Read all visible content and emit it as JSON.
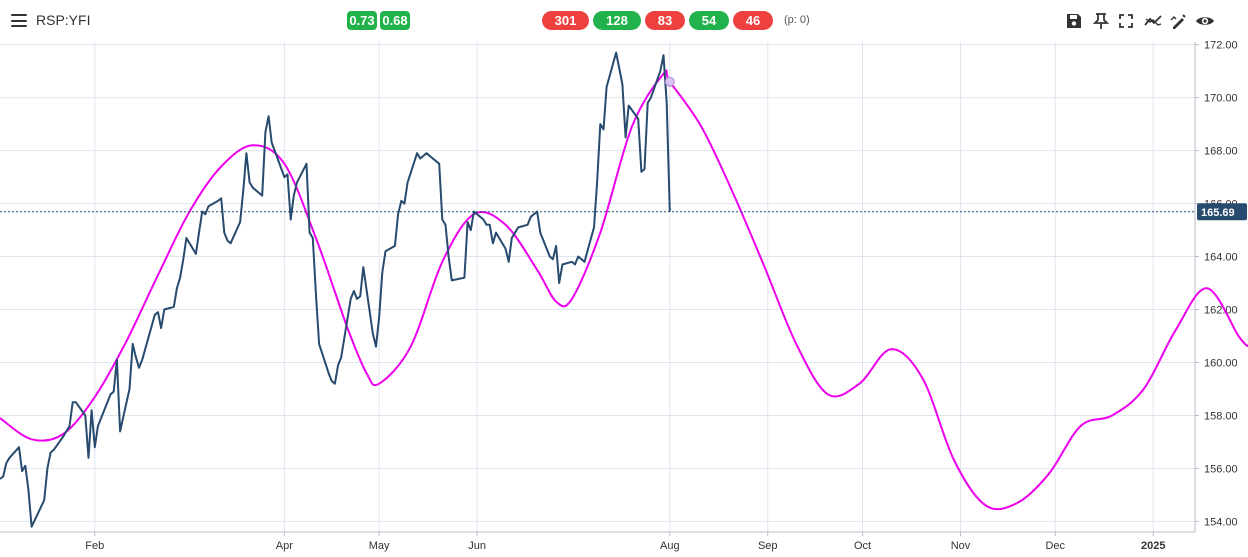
{
  "toolbar": {
    "symbol": "RSP:YFI",
    "corr_badges": [
      "0.73",
      "0.68"
    ],
    "count_badges": [
      {
        "label": "301",
        "color": "red"
      },
      {
        "label": "128",
        "color": "green"
      },
      {
        "label": "83",
        "color": "red"
      },
      {
        "label": "54",
        "color": "green"
      },
      {
        "label": "46",
        "color": "red"
      }
    ],
    "p_value": "(p: 0)",
    "icons": [
      "save-icon",
      "pin-icon",
      "fullscreen-icon",
      "trend-icon",
      "draw-icon",
      "eye-icon"
    ]
  },
  "colors": {
    "price": "#274b6e",
    "projection": "#ee00ee",
    "grid": "#dfe5ef",
    "badge_green": "#22b24c",
    "badge_red": "#ef4040",
    "last_price_bg": "#274b6e"
  },
  "chart_data": {
    "type": "line",
    "y_axis": {
      "ticks": [
        "154.00",
        "156.00",
        "158.00",
        "160.00",
        "162.00",
        "164.00",
        "166.00",
        "168.00",
        "170.00",
        "172.00"
      ],
      "range": [
        153.6,
        172.1
      ],
      "side": "right"
    },
    "x_axis": {
      "ticks": [
        "Feb",
        "Apr",
        "May",
        "Jun",
        "Aug",
        "Sep",
        "Oct",
        "Nov",
        "Dec",
        "2025"
      ],
      "tick_dates": [
        "2024-02-01",
        "2024-04-01",
        "2024-05-01",
        "2024-06-01",
        "2024-08-01",
        "2024-09-01",
        "2024-10-01",
        "2024-11-01",
        "2024-12-01",
        "2025-01-01"
      ],
      "range": [
        "2024-01-02",
        "2025-01-31"
      ]
    },
    "last_price": "165.69",
    "grid": true,
    "series": [
      {
        "name": "",
        "role": "price",
        "points": [
          [
            "2024-01-02",
            155.6
          ],
          [
            "2024-01-03",
            155.7
          ],
          [
            "2024-01-04",
            156.2
          ],
          [
            "2024-01-05",
            156.4
          ],
          [
            "2024-01-08",
            156.8
          ],
          [
            "2024-01-09",
            155.9
          ],
          [
            "2024-01-10",
            156.1
          ],
          [
            "2024-01-11",
            155.2
          ],
          [
            "2024-01-12",
            153.8
          ],
          [
            "2024-01-16",
            154.8
          ],
          [
            "2024-01-17",
            156.0
          ],
          [
            "2024-01-18",
            156.6
          ],
          [
            "2024-01-19",
            156.7
          ],
          [
            "2024-01-22",
            157.2
          ],
          [
            "2024-01-23",
            157.4
          ],
          [
            "2024-01-24",
            157.6
          ],
          [
            "2024-01-25",
            158.5
          ],
          [
            "2024-01-26",
            158.5
          ],
          [
            "2024-01-29",
            158.0
          ],
          [
            "2024-01-30",
            156.4
          ],
          [
            "2024-01-31",
            158.2
          ],
          [
            "2024-02-01",
            156.8
          ],
          [
            "2024-02-02",
            157.6
          ],
          [
            "2024-02-05",
            158.5
          ],
          [
            "2024-02-06",
            158.8
          ],
          [
            "2024-02-07",
            158.9
          ],
          [
            "2024-02-08",
            160.1
          ],
          [
            "2024-02-09",
            157.4
          ],
          [
            "2024-02-12",
            159.0
          ],
          [
            "2024-02-13",
            160.7
          ],
          [
            "2024-02-14",
            160.2
          ],
          [
            "2024-02-15",
            159.8
          ],
          [
            "2024-02-16",
            160.1
          ],
          [
            "2024-02-20",
            161.8
          ],
          [
            "2024-02-21",
            161.9
          ],
          [
            "2024-02-22",
            161.3
          ],
          [
            "2024-02-23",
            162.0
          ],
          [
            "2024-02-26",
            162.1
          ],
          [
            "2024-02-27",
            162.8
          ],
          [
            "2024-02-28",
            163.2
          ],
          [
            "2024-02-29",
            163.9
          ],
          [
            "2024-03-01",
            164.7
          ],
          [
            "2024-03-04",
            164.1
          ],
          [
            "2024-03-05",
            164.9
          ],
          [
            "2024-03-06",
            165.7
          ],
          [
            "2024-03-07",
            165.6
          ],
          [
            "2024-03-08",
            165.9
          ],
          [
            "2024-03-11",
            166.1
          ],
          [
            "2024-03-12",
            166.2
          ],
          [
            "2024-03-13",
            164.9
          ],
          [
            "2024-03-14",
            164.6
          ],
          [
            "2024-03-15",
            164.5
          ],
          [
            "2024-03-18",
            165.3
          ],
          [
            "2024-03-19",
            166.5
          ],
          [
            "2024-03-20",
            167.9
          ],
          [
            "2024-03-21",
            166.8
          ],
          [
            "2024-03-22",
            166.6
          ],
          [
            "2024-03-25",
            166.3
          ],
          [
            "2024-03-26",
            168.7
          ],
          [
            "2024-03-27",
            169.3
          ],
          [
            "2024-03-28",
            168.3
          ],
          [
            "2024-04-01",
            167.0
          ],
          [
            "2024-04-02",
            167.1
          ],
          [
            "2024-04-03",
            165.4
          ],
          [
            "2024-04-04",
            166.3
          ],
          [
            "2024-04-05",
            166.8
          ],
          [
            "2024-04-08",
            167.5
          ],
          [
            "2024-04-09",
            164.9
          ],
          [
            "2024-04-10",
            164.7
          ],
          [
            "2024-04-11",
            162.6
          ],
          [
            "2024-04-12",
            160.7
          ],
          [
            "2024-04-15",
            159.6
          ],
          [
            "2024-04-16",
            159.3
          ],
          [
            "2024-04-17",
            159.2
          ],
          [
            "2024-04-18",
            159.9
          ],
          [
            "2024-04-19",
            160.2
          ],
          [
            "2024-04-22",
            162.4
          ],
          [
            "2024-04-23",
            162.7
          ],
          [
            "2024-04-24",
            162.4
          ],
          [
            "2024-04-25",
            162.5
          ],
          [
            "2024-04-26",
            163.6
          ],
          [
            "2024-04-29",
            161.1
          ],
          [
            "2024-04-30",
            160.6
          ],
          [
            "2024-05-01",
            161.7
          ],
          [
            "2024-05-02",
            163.4
          ],
          [
            "2024-05-03",
            164.2
          ],
          [
            "2024-05-06",
            164.4
          ],
          [
            "2024-05-07",
            165.6
          ],
          [
            "2024-05-08",
            166.1
          ],
          [
            "2024-05-09",
            166.0
          ],
          [
            "2024-05-10",
            166.8
          ],
          [
            "2024-05-13",
            167.9
          ],
          [
            "2024-05-14",
            167.7
          ],
          [
            "2024-05-15",
            167.8
          ],
          [
            "2024-05-16",
            167.9
          ],
          [
            "2024-05-17",
            167.8
          ],
          [
            "2024-05-20",
            167.5
          ],
          [
            "2024-05-21",
            165.4
          ],
          [
            "2024-05-22",
            165.2
          ],
          [
            "2024-05-23",
            164.0
          ],
          [
            "2024-05-24",
            163.1
          ],
          [
            "2024-05-28",
            163.2
          ],
          [
            "2024-05-29",
            165.3
          ],
          [
            "2024-05-30",
            165.0
          ],
          [
            "2024-05-31",
            165.7
          ],
          [
            "2024-06-03",
            165.4
          ],
          [
            "2024-06-04",
            165.2
          ],
          [
            "2024-06-05",
            165.2
          ],
          [
            "2024-06-06",
            164.5
          ],
          [
            "2024-06-07",
            164.9
          ],
          [
            "2024-06-10",
            164.3
          ],
          [
            "2024-06-11",
            163.8
          ],
          [
            "2024-06-12",
            164.7
          ],
          [
            "2024-06-13",
            164.9
          ],
          [
            "2024-06-14",
            165.1
          ],
          [
            "2024-06-17",
            165.2
          ],
          [
            "2024-06-18",
            165.5
          ],
          [
            "2024-06-20",
            165.7
          ],
          [
            "2024-06-21",
            164.9
          ],
          [
            "2024-06-24",
            164.0
          ],
          [
            "2024-06-25",
            163.9
          ],
          [
            "2024-06-26",
            164.4
          ],
          [
            "2024-06-27",
            163.0
          ],
          [
            "2024-06-28",
            163.7
          ],
          [
            "2024-07-01",
            163.8
          ],
          [
            "2024-07-02",
            163.7
          ],
          [
            "2024-07-03",
            164.0
          ],
          [
            "2024-07-05",
            163.8
          ],
          [
            "2024-07-08",
            165.1
          ],
          [
            "2024-07-09",
            166.8
          ],
          [
            "2024-07-10",
            169.0
          ],
          [
            "2024-07-11",
            168.8
          ],
          [
            "2024-07-12",
            170.4
          ],
          [
            "2024-07-15",
            171.7
          ],
          [
            "2024-07-16",
            171.1
          ],
          [
            "2024-07-17",
            170.5
          ],
          [
            "2024-07-18",
            168.5
          ],
          [
            "2024-07-19",
            169.7
          ],
          [
            "2024-07-22",
            169.2
          ],
          [
            "2024-07-23",
            167.2
          ],
          [
            "2024-07-24",
            167.3
          ],
          [
            "2024-07-25",
            169.8
          ],
          [
            "2024-07-26",
            170.0
          ],
          [
            "2024-07-29",
            171.0
          ],
          [
            "2024-07-30",
            171.6
          ],
          [
            "2024-07-31",
            169.8
          ],
          [
            "2024-08-01",
            165.7
          ]
        ]
      },
      {
        "name": "",
        "role": "projection",
        "points": [
          [
            "2024-01-02",
            157.9
          ],
          [
            "2024-01-12",
            157.1
          ],
          [
            "2024-01-22",
            157.3
          ],
          [
            "2024-02-01",
            158.7
          ],
          [
            "2024-02-11",
            160.8
          ],
          [
            "2024-02-21",
            163.3
          ],
          [
            "2024-03-02",
            165.7
          ],
          [
            "2024-03-12",
            167.4
          ],
          [
            "2024-03-22",
            168.2
          ],
          [
            "2024-04-01",
            167.5
          ],
          [
            "2024-04-11",
            164.7
          ],
          [
            "2024-04-21",
            161.3
          ],
          [
            "2024-04-27",
            159.6
          ],
          [
            "2024-05-01",
            159.2
          ],
          [
            "2024-05-11",
            160.6
          ],
          [
            "2024-05-21",
            163.8
          ],
          [
            "2024-05-31",
            165.6
          ],
          [
            "2024-06-10",
            165.2
          ],
          [
            "2024-06-20",
            163.5
          ],
          [
            "2024-06-26",
            162.3
          ],
          [
            "2024-07-01",
            162.4
          ],
          [
            "2024-07-10",
            164.9
          ],
          [
            "2024-07-20",
            168.9
          ],
          [
            "2024-07-30",
            170.9
          ],
          [
            "2024-08-01",
            170.6
          ],
          [
            "2024-08-11",
            168.9
          ],
          [
            "2024-08-21",
            166.4
          ],
          [
            "2024-08-31",
            163.6
          ],
          [
            "2024-09-10",
            160.7
          ],
          [
            "2024-09-20",
            158.8
          ],
          [
            "2024-09-30",
            159.2
          ],
          [
            "2024-10-10",
            160.5
          ],
          [
            "2024-10-20",
            159.4
          ],
          [
            "2024-10-30",
            156.3
          ],
          [
            "2024-11-09",
            154.6
          ],
          [
            "2024-11-19",
            154.7
          ],
          [
            "2024-11-29",
            155.8
          ],
          [
            "2024-12-09",
            157.6
          ],
          [
            "2024-12-19",
            158.0
          ],
          [
            "2024-12-29",
            159.0
          ],
          [
            "2025-01-08",
            161.2
          ],
          [
            "2025-01-18",
            162.8
          ],
          [
            "2025-01-28",
            161.0
          ],
          [
            "2025-01-31",
            160.6
          ]
        ]
      }
    ],
    "marker": {
      "date": "2024-08-01",
      "value": 170.6
    }
  }
}
